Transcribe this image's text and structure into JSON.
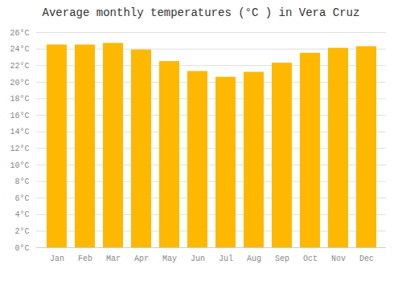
{
  "chart_data": {
    "type": "bar",
    "title": "Average monthly temperatures (°C ) in Vera Cruz",
    "categories": [
      "Jan",
      "Feb",
      "Mar",
      "Apr",
      "May",
      "Jun",
      "Jul",
      "Aug",
      "Sep",
      "Oct",
      "Nov",
      "Dec"
    ],
    "values": [
      24.5,
      24.5,
      24.7,
      23.9,
      22.5,
      21.3,
      20.6,
      21.2,
      22.3,
      23.5,
      24.1,
      24.3
    ],
    "color": "#FFB800",
    "ylim": [
      0,
      26
    ],
    "yticks": [
      {
        "value": 0,
        "label": "0°C"
      },
      {
        "value": 2,
        "label": "2°C"
      },
      {
        "value": 4,
        "label": "4°C"
      },
      {
        "value": 6,
        "label": "6°C"
      },
      {
        "value": 8,
        "label": "8°C"
      },
      {
        "value": 10,
        "label": "10°C"
      },
      {
        "value": 12,
        "label": "12°C"
      },
      {
        "value": 14,
        "label": "14°C"
      },
      {
        "value": 16,
        "label": "16°C"
      },
      {
        "value": 18,
        "label": "18°C"
      },
      {
        "value": 20,
        "label": "20°C"
      },
      {
        "value": 22,
        "label": "22°C"
      },
      {
        "value": 24,
        "label": "24°C"
      },
      {
        "value": 26,
        "label": "26°C"
      }
    ],
    "grid": true
  }
}
